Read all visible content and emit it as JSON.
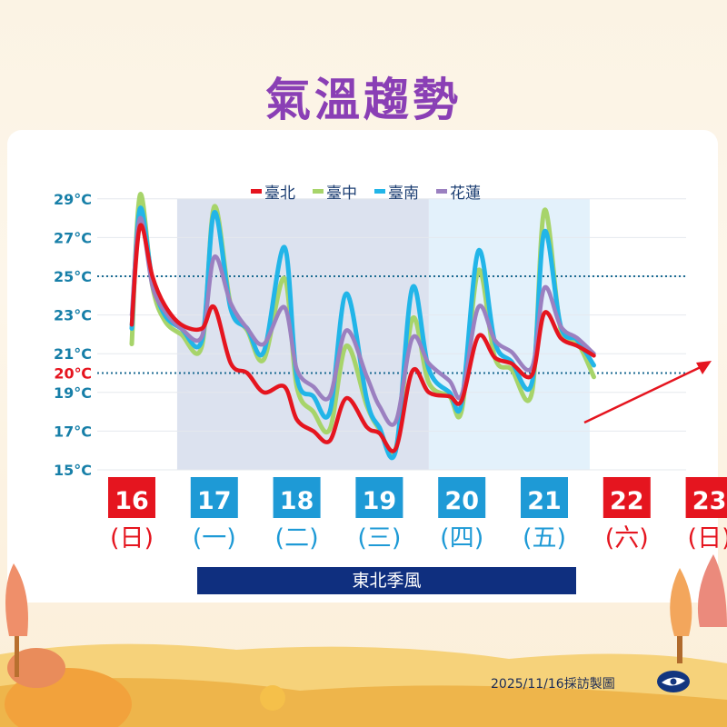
{
  "title": "氣溫趨勢",
  "season_label": "東北季風",
  "footer": "2025/11/16採訪製圖",
  "colors": {
    "taipei": "#e5151f",
    "taichung": "#a7d46a",
    "tainan": "#22b5e8",
    "hualien": "#9b80c0",
    "weekday": "#1e9ad6",
    "weekend": "#e5151f",
    "title": "#8a3fb5",
    "band": "#0f2f7f"
  },
  "chart_data": {
    "type": "line",
    "yticks": [
      "29°C",
      "27°C",
      "25°C",
      "23°C",
      "21°C",
      "20℃",
      "19°C",
      "17°C",
      "15°C"
    ],
    "ytick_values": [
      29,
      27,
      25,
      23,
      21,
      20,
      19,
      17,
      15
    ],
    "ylim": [
      15,
      29
    ],
    "reference_lines": [
      25,
      20
    ],
    "days": [
      {
        "date": "16",
        "weekday": "(日)",
        "weekend": true
      },
      {
        "date": "17",
        "weekday": "(一)",
        "weekend": false
      },
      {
        "date": "18",
        "weekday": "(二)",
        "weekend": false
      },
      {
        "date": "19",
        "weekday": "(三)",
        "weekend": false
      },
      {
        "date": "20",
        "weekday": "(四)",
        "weekend": false
      },
      {
        "date": "21",
        "weekday": "(五)",
        "weekend": false
      },
      {
        "date": "22",
        "weekday": "(六)",
        "weekend": true
      },
      {
        "date": "23",
        "weekday": "(日)",
        "weekend": true
      }
    ],
    "x": [
      16,
      16.1,
      16.25,
      16.4,
      16.6,
      16.85,
      17,
      17.2,
      17.4,
      17.6,
      17.85,
      18,
      18.2,
      18.4,
      18.6,
      18.85,
      19,
      19.2,
      19.4,
      19.6,
      19.85,
      20,
      20.2,
      20.4,
      20.6,
      20.85,
      21,
      21.2,
      21.4,
      21.6,
      21.85,
      22,
      22.2,
      22.4,
      22.6,
      22.85
    ],
    "series": [
      {
        "name": "臺北",
        "key": "taipei",
        "values": [
          22.5,
          27.6,
          25.0,
          23.5,
          22.5,
          22.3,
          23.4,
          20.5,
          20.0,
          19.0,
          19.3,
          17.6,
          17.0,
          16.5,
          18.7,
          17.2,
          16.9,
          16.1,
          20.1,
          19.0,
          18.8,
          18.6,
          21.9,
          20.8,
          20.5,
          19.9,
          23.1,
          21.8,
          21.4,
          20.9,
          null,
          null,
          null,
          null,
          null,
          null
        ]
      },
      {
        "name": "臺中",
        "key": "taichung",
        "values": [
          21.5,
          29.2,
          24.5,
          22.7,
          22.0,
          21.4,
          28.6,
          23.5,
          22.2,
          20.7,
          24.9,
          19.3,
          18.0,
          17.1,
          21.4,
          18.3,
          17.1,
          16.1,
          22.8,
          19.5,
          18.8,
          18.1,
          25.3,
          20.8,
          20.2,
          19.0,
          28.4,
          22.2,
          21.6,
          19.8,
          null,
          null,
          null,
          null,
          null,
          null
        ]
      },
      {
        "name": "臺南",
        "key": "tainan",
        "values": [
          22.3,
          28.5,
          24.8,
          23.0,
          22.3,
          21.7,
          28.3,
          23.3,
          22.3,
          21.1,
          26.5,
          19.8,
          18.8,
          18.0,
          24.1,
          18.6,
          17.2,
          16.0,
          24.4,
          20.2,
          19.0,
          18.5,
          26.3,
          21.6,
          20.6,
          19.5,
          27.3,
          22.4,
          21.7,
          20.4,
          null,
          null,
          null,
          null,
          null,
          null
        ]
      },
      {
        "name": "花蓮",
        "key": "hualien",
        "values": [
          23.0,
          28.0,
          24.5,
          23.2,
          22.3,
          21.9,
          26.0,
          23.6,
          22.3,
          21.5,
          23.4,
          20.2,
          19.3,
          18.8,
          22.2,
          19.8,
          18.3,
          17.5,
          21.8,
          20.5,
          19.6,
          18.9,
          23.4,
          21.7,
          21.1,
          20.3,
          24.4,
          22.4,
          21.8,
          21.0,
          null,
          null,
          null,
          null,
          null,
          null
        ]
      }
    ]
  }
}
